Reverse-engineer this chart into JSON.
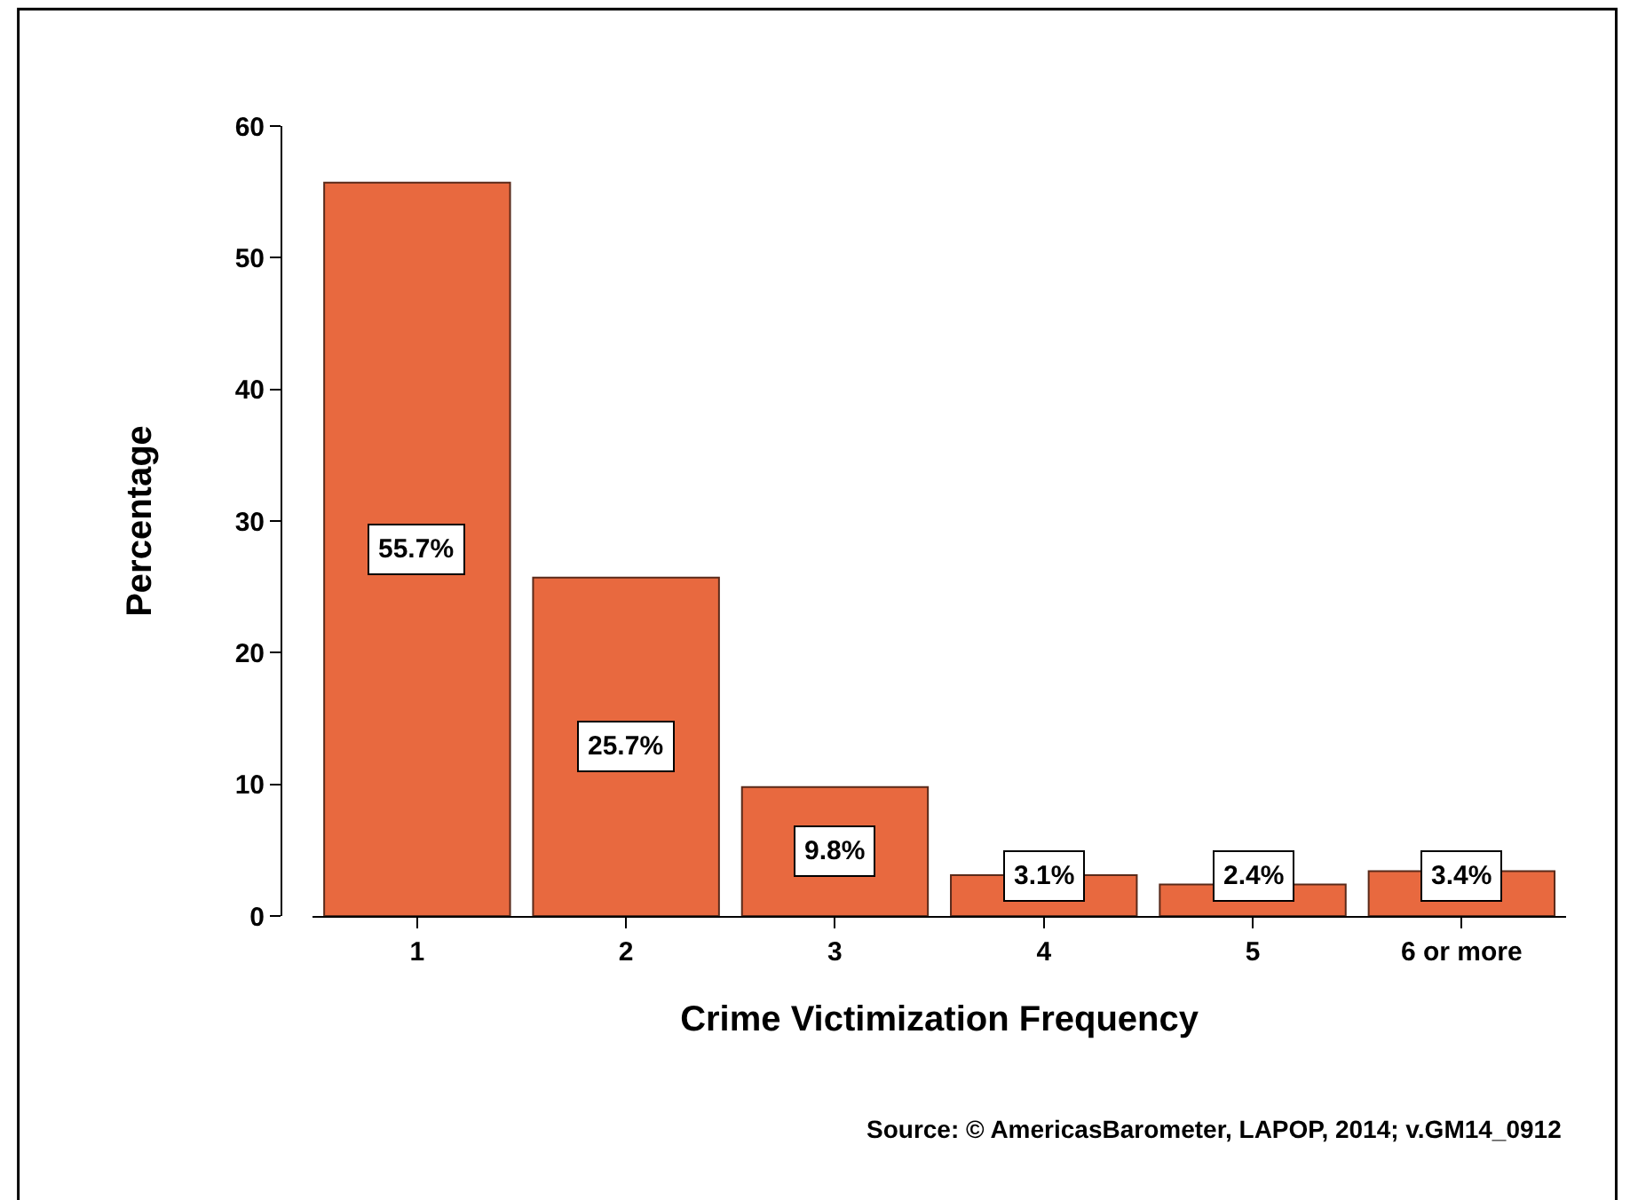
{
  "chart_data": {
    "type": "bar",
    "xlabel": "Crime Victimization Frequency",
    "ylabel": "Percentage",
    "categories": [
      "1",
      "2",
      "3",
      "4",
      "5",
      "6 or more"
    ],
    "values": [
      55.7,
      25.7,
      9.8,
      3.1,
      2.4,
      3.4
    ],
    "value_labels": [
      "55.7%",
      "25.7%",
      "9.8%",
      "3.1%",
      "2.4%",
      "3.4%"
    ],
    "color": "#e8693f",
    "ylim": [
      0,
      60
    ],
    "yticks": [
      0,
      10,
      20,
      30,
      40,
      50,
      60
    ],
    "legend": false,
    "annotations": [
      "Source: © AmericasBarometer, LAPOP, 2014; v.GM14_0912"
    ]
  }
}
